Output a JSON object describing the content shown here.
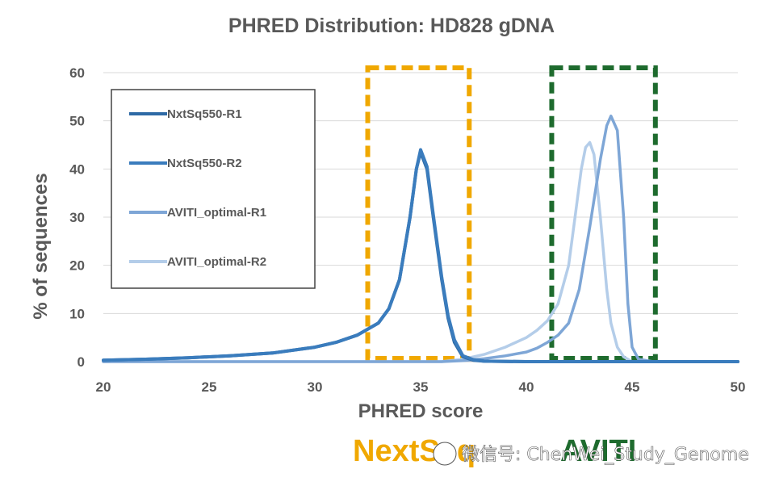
{
  "chart_data": {
    "type": "line",
    "title": "PHRED Distribution: HD828 gDNA",
    "xlabel": "PHRED score",
    "ylabel": "% of sequences",
    "xlim": [
      20,
      50
    ],
    "ylim": [
      0,
      60
    ],
    "xticks": [
      20,
      25,
      30,
      35,
      40,
      45,
      50
    ],
    "yticks": [
      0,
      10,
      20,
      30,
      40,
      50,
      60
    ],
    "grid": true,
    "legend_position": "top-left",
    "series": [
      {
        "name": "NxtSq550-R1",
        "color": "#2e6aa5",
        "x": [
          20,
          22,
          24,
          26,
          28,
          30,
          31,
          32,
          33,
          33.5,
          34,
          34.5,
          34.8,
          35,
          35.3,
          35.6,
          36,
          36.3,
          36.6,
          37,
          37.5,
          38,
          40,
          42,
          45,
          50
        ],
        "y": [
          0.3,
          0.5,
          0.8,
          1.2,
          1.8,
          3.0,
          4.0,
          5.5,
          8.0,
          11.0,
          17.0,
          30.0,
          40.0,
          43.5,
          40.0,
          30.0,
          17.0,
          9.0,
          4.0,
          1.0,
          0.3,
          0.1,
          0,
          0,
          0,
          0
        ]
      },
      {
        "name": "NxtSq550-R2",
        "color": "#3a7cbd",
        "x": [
          20,
          22,
          24,
          26,
          28,
          30,
          31,
          32,
          33,
          33.5,
          34,
          34.5,
          34.8,
          35,
          35.3,
          35.6,
          36,
          36.3,
          36.6,
          37,
          37.5,
          38,
          40,
          42,
          45,
          50
        ],
        "y": [
          0.3,
          0.5,
          0.8,
          1.2,
          1.8,
          3.0,
          4.0,
          5.5,
          8.0,
          11.0,
          17.0,
          30.0,
          40.0,
          44.0,
          40.5,
          30.5,
          17.5,
          9.5,
          4.5,
          1.2,
          0.4,
          0.1,
          0,
          0,
          0,
          0
        ]
      },
      {
        "name": "AVITI_optimal-R1",
        "color": "#7ea6d6",
        "x": [
          20,
          30,
          36,
          37,
          38,
          39,
          40,
          40.5,
          41,
          41.5,
          42,
          42.5,
          43,
          43.5,
          43.8,
          44,
          44.3,
          44.6,
          44.8,
          45,
          45.3,
          46,
          50
        ],
        "y": [
          0,
          0,
          0,
          0.2,
          0.6,
          1.2,
          2.0,
          2.8,
          4.0,
          5.5,
          8.0,
          15.0,
          28.0,
          42.0,
          49.0,
          51.0,
          48.0,
          30.0,
          12.0,
          3.0,
          0.5,
          0,
          0
        ]
      },
      {
        "name": "AVITI_optimal-R2",
        "color": "#b4cde9",
        "x": [
          20,
          30,
          36,
          37,
          38,
          39,
          40,
          40.5,
          41,
          41.5,
          42,
          42.3,
          42.6,
          42.8,
          43,
          43.2,
          43.5,
          43.8,
          44,
          44.3,
          44.6,
          45,
          50
        ],
        "y": [
          0,
          0,
          0,
          0.5,
          1.5,
          3.0,
          5.0,
          6.5,
          8.5,
          12.0,
          20.0,
          30.0,
          40.0,
          44.5,
          45.5,
          43.0,
          30.0,
          15.0,
          8.0,
          3.0,
          1.0,
          0,
          0
        ]
      }
    ],
    "annotations": [
      {
        "label": "NextSeq",
        "x_range": [
          32.5,
          37.3
        ],
        "y_range": [
          0,
          61
        ],
        "color": "#f0a800",
        "style": "dashed-box"
      },
      {
        "label": "AVITI",
        "x_range": [
          41.2,
          46.1
        ],
        "y_range": [
          0,
          61
        ],
        "color": "#1e6b2e",
        "style": "dashed-box"
      }
    ]
  },
  "watermark": "微信号: ChenWei_Study_Genome"
}
